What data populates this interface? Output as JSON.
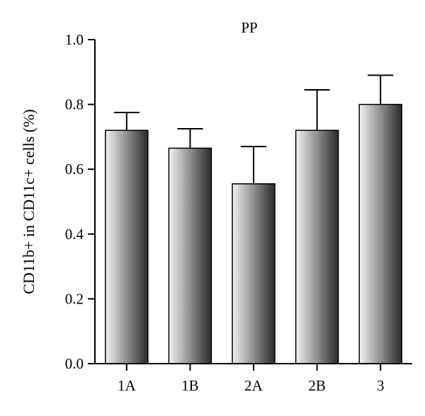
{
  "chart_data": {
    "type": "bar",
    "title": "PP",
    "xlabel": "",
    "ylabel": "CD11b+ in CD11c+ cells (%)",
    "categories": [
      "1A",
      "1B",
      "2A",
      "2B",
      "3"
    ],
    "values": [
      0.72,
      0.665,
      0.555,
      0.72,
      0.8
    ],
    "error_upper": [
      0.775,
      0.725,
      0.67,
      0.845,
      0.89
    ],
    "ylim": [
      0.0,
      1.0
    ],
    "yticks": [
      "0.0",
      "0.2",
      "0.4",
      "0.6",
      "0.8",
      "1.0"
    ],
    "ytick_values": [
      0.0,
      0.2,
      0.4,
      0.6,
      0.8,
      1.0
    ],
    "grid": false,
    "bar_gradient": [
      "#f2f2f2",
      "#2b2b2b"
    ]
  }
}
